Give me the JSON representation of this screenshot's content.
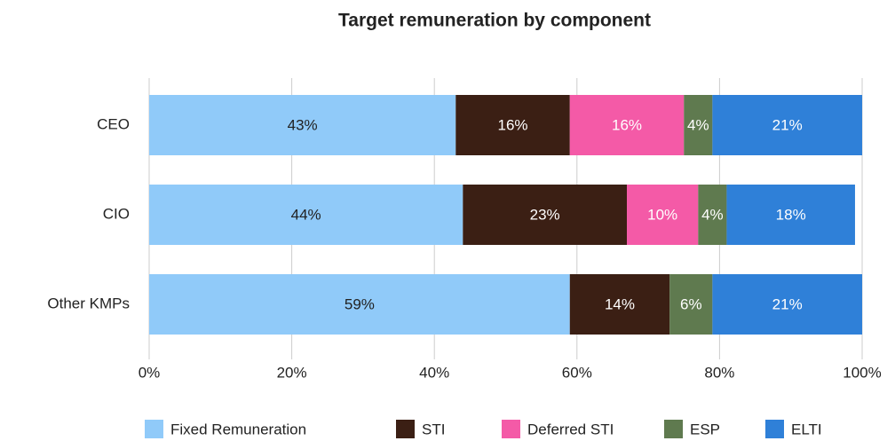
{
  "chart_data": {
    "type": "bar",
    "orientation": "horizontal",
    "stacked": true,
    "title": "Target remuneration by component",
    "categories": [
      "CEO",
      "CIO",
      "Other KMPs"
    ],
    "series": [
      {
        "name": "Fixed Remuneration",
        "color": "#90caf9",
        "values": [
          43,
          44,
          59
        ],
        "value_labels": [
          "43%",
          "44%",
          "59%"
        ]
      },
      {
        "name": "STI",
        "color": "#3b1f14",
        "values": [
          16,
          23,
          14
        ],
        "value_labels": [
          "16%",
          "23%",
          "14%"
        ]
      },
      {
        "name": "Deferred STI",
        "color": "#f45aa7",
        "values": [
          16,
          10,
          null
        ],
        "value_labels": [
          "16%",
          "10%",
          null
        ]
      },
      {
        "name": "ESP",
        "color": "#5f7a4f",
        "values": [
          4,
          4,
          6
        ],
        "value_labels": [
          "4%",
          "4%",
          "6%"
        ]
      },
      {
        "name": "ELTI",
        "color": "#2f80d8",
        "values": [
          21,
          18,
          21
        ],
        "value_labels": [
          "21%",
          "18%",
          "21%"
        ]
      }
    ],
    "xlim": [
      0,
      100
    ],
    "xticks": [
      {
        "value": 0,
        "label": "0%"
      },
      {
        "value": 20,
        "label": "20%"
      },
      {
        "value": 40,
        "label": "40%"
      },
      {
        "value": 60,
        "label": "60%"
      },
      {
        "value": 80,
        "label": "80%"
      },
      {
        "value": 100,
        "label": "100%"
      }
    ],
    "grid": true,
    "legend": "bottom"
  }
}
